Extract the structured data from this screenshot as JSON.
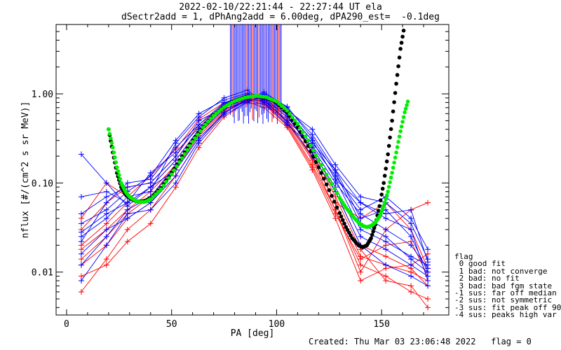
{
  "title_line1": "2022-02-10/22:21:44 - 22:27:44 UT ela",
  "title_line2": "dSectr2add = 1, dPhAng2add = 6.00deg, dPA290_est=  -0.1deg",
  "footer": {
    "created": "Created: Thu Mar 03 23:06:48 2022",
    "flag": "flag = 0"
  },
  "legend": {
    "header": "flag",
    "items": [
      " 0 good fit",
      " 1 bad: not converge",
      " 2 bad: no fit",
      " 3 bad: bad fgm state",
      "-1 sus: far off median",
      "-2 sus: not symmetric",
      "-3 sus: fit peak off 90",
      "-4 sus: peaks high var"
    ]
  },
  "chart_data": {
    "type": "line",
    "xlabel": "PA [deg]",
    "ylabel": "nflux [#/(cm^2 s sr MeV)]",
    "xlim": [
      -5,
      182
    ],
    "ylim": [
      0.0033,
      6.0
    ],
    "yscale": "log",
    "xticks": [
      0,
      50,
      100,
      150
    ],
    "xtick_labels": [
      "0",
      "50",
      "100",
      "150"
    ],
    "yticks": [
      0.01,
      0.1,
      1.0
    ],
    "ytick_labels": [
      "0.01",
      "0.10",
      "1.00"
    ],
    "pa_bins": [
      7,
      19,
      29,
      40,
      52,
      63,
      75,
      86,
      94,
      105,
      117,
      128,
      140,
      152,
      164,
      172
    ],
    "colors": {
      "blue": "#0000ff",
      "red": "#ff0000",
      "fit_black": "#000000",
      "fit_green": "#00ee00"
    },
    "series_blue": [
      [
        0.028,
        0.045,
        0.06,
        0.09,
        0.18,
        0.4,
        0.72,
        0.92,
        0.95,
        0.62,
        0.3,
        0.11,
        0.03,
        0.022,
        0.015,
        0.012
      ],
      [
        0.022,
        0.06,
        0.1,
        0.11,
        0.25,
        0.45,
        0.8,
        0.98,
        0.9,
        0.55,
        0.25,
        0.1,
        0.045,
        0.03,
        0.02,
        0.011
      ],
      [
        0.035,
        0.05,
        0.08,
        0.12,
        0.3,
        0.6,
        0.85,
        1.02,
        0.85,
        0.5,
        0.28,
        0.14,
        0.04,
        0.05,
        0.025,
        0.01
      ],
      [
        0.016,
        0.03,
        0.04,
        0.06,
        0.12,
        0.3,
        0.62,
        0.85,
        1.05,
        0.7,
        0.35,
        0.14,
        0.06,
        0.04,
        0.03,
        0.008
      ],
      [
        0.045,
        0.07,
        0.09,
        0.1,
        0.2,
        0.5,
        0.7,
        0.9,
        0.98,
        0.58,
        0.22,
        0.09,
        0.025,
        0.018,
        0.012,
        0.009
      ],
      [
        0.012,
        0.025,
        0.05,
        0.07,
        0.16,
        0.36,
        0.68,
        0.82,
        0.92,
        0.66,
        0.4,
        0.16,
        0.07,
        0.06,
        0.035,
        0.014
      ],
      [
        0.07,
        0.08,
        0.06,
        0.13,
        0.22,
        0.42,
        0.78,
        0.96,
        0.88,
        0.48,
        0.2,
        0.08,
        0.02,
        0.012,
        0.009,
        0.007
      ],
      [
        0.025,
        0.04,
        0.07,
        0.08,
        0.28,
        0.55,
        0.9,
        1.1,
        0.8,
        0.45,
        0.26,
        0.12,
        0.05,
        0.07,
        0.04,
        0.018
      ],
      [
        0.21,
        0.1,
        0.055,
        0.09,
        0.14,
        0.32,
        0.6,
        0.88,
        1.0,
        0.72,
        0.32,
        0.13,
        0.035,
        0.025,
        0.014,
        0.01
      ],
      [
        0.008,
        0.02,
        0.045,
        0.05,
        0.1,
        0.28,
        0.58,
        0.8,
        0.96,
        0.64,
        0.3,
        0.11,
        0.06,
        0.045,
        0.05,
        0.013
      ]
    ],
    "series_red": [
      [
        0.018,
        0.03,
        0.05,
        0.08,
        0.16,
        0.38,
        0.66,
        0.86,
        0.84,
        0.52,
        0.2,
        0.06,
        0.015,
        0.012,
        0.01,
        0.008
      ],
      [
        0.006,
        0.014,
        0.03,
        0.05,
        0.12,
        0.3,
        0.6,
        0.9,
        0.8,
        0.48,
        0.18,
        0.05,
        0.012,
        0.009,
        0.006,
        0.005
      ],
      [
        0.03,
        0.06,
        0.09,
        0.1,
        0.2,
        0.45,
        0.75,
        0.92,
        0.86,
        0.55,
        0.24,
        0.08,
        0.02,
        0.015,
        0.011,
        0.007
      ],
      [
        0.012,
        0.02,
        0.04,
        0.06,
        0.14,
        0.34,
        0.62,
        0.84,
        0.9,
        0.58,
        0.22,
        0.07,
        0.018,
        0.008,
        0.007,
        0.004
      ],
      [
        0.04,
        0.1,
        0.07,
        0.12,
        0.24,
        0.52,
        0.8,
        0.78,
        0.78,
        0.46,
        0.16,
        0.05,
        0.01,
        0.03,
        0.05,
        0.06
      ],
      [
        0.009,
        0.012,
        0.022,
        0.035,
        0.09,
        0.25,
        0.55,
        0.82,
        0.7,
        0.42,
        0.14,
        0.04,
        0.008,
        0.011,
        0.012,
        0.016
      ],
      [
        0.02,
        0.035,
        0.06,
        0.09,
        0.18,
        0.4,
        0.7,
        0.88,
        0.82,
        0.5,
        0.19,
        0.06,
        0.04,
        0.06,
        0.03,
        0.011
      ],
      [
        0.014,
        0.025,
        0.045,
        0.07,
        0.15,
        0.36,
        0.64,
        0.86,
        0.76,
        0.44,
        0.15,
        0.045,
        0.014,
        0.02,
        0.022,
        0.009
      ]
    ],
    "fit_black": {
      "x": [
        20,
        22,
        24,
        26,
        28,
        30,
        32,
        34,
        36,
        38,
        40,
        45,
        50,
        55,
        60,
        65,
        70,
        75,
        80,
        85,
        90,
        95,
        100,
        105,
        110,
        115,
        120,
        125,
        130,
        133,
        136,
        139,
        141,
        143,
        145,
        147,
        149,
        151,
        153,
        155,
        157,
        159,
        161
      ],
      "y": [
        0.4,
        0.22,
        0.13,
        0.09,
        0.075,
        0.068,
        0.064,
        0.062,
        0.062,
        0.064,
        0.068,
        0.088,
        0.13,
        0.2,
        0.3,
        0.43,
        0.58,
        0.72,
        0.84,
        0.92,
        0.95,
        0.91,
        0.8,
        0.62,
        0.42,
        0.26,
        0.15,
        0.083,
        0.046,
        0.032,
        0.024,
        0.02,
        0.019,
        0.02,
        0.024,
        0.034,
        0.055,
        0.1,
        0.21,
        0.5,
        1.3,
        3.2,
        6.0
      ]
    },
    "fit_green": {
      "x": [
        20,
        22,
        24,
        26,
        28,
        30,
        32,
        34,
        36,
        38,
        40,
        45,
        50,
        55,
        60,
        65,
        70,
        75,
        80,
        85,
        90,
        95,
        100,
        105,
        110,
        115,
        120,
        125,
        130,
        133,
        136,
        139,
        141,
        143,
        145,
        147,
        149,
        151,
        153,
        155,
        157,
        159,
        161,
        163
      ],
      "y": [
        0.4,
        0.25,
        0.15,
        0.1,
        0.08,
        0.07,
        0.065,
        0.062,
        0.061,
        0.062,
        0.066,
        0.085,
        0.125,
        0.19,
        0.29,
        0.42,
        0.57,
        0.71,
        0.83,
        0.91,
        0.95,
        0.92,
        0.82,
        0.65,
        0.46,
        0.3,
        0.18,
        0.11,
        0.068,
        0.053,
        0.043,
        0.036,
        0.033,
        0.032,
        0.033,
        0.036,
        0.042,
        0.055,
        0.08,
        0.13,
        0.22,
        0.38,
        0.62,
        0.9
      ]
    }
  }
}
